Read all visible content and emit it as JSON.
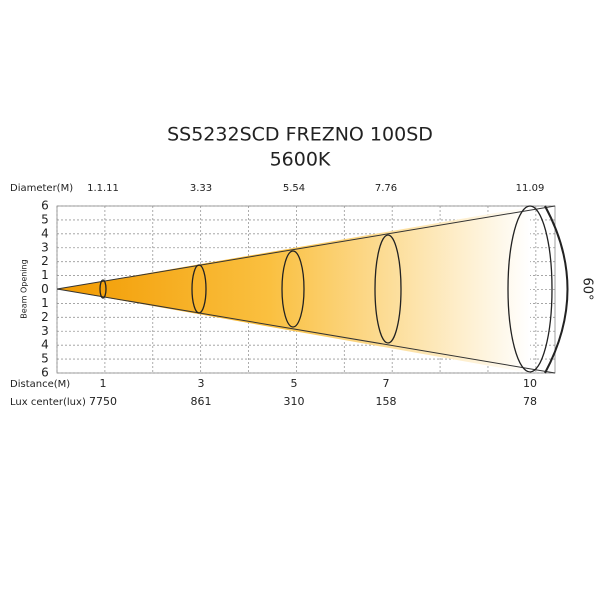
{
  "title": "SS5232SCD FREZNO 100SD",
  "subtitle": "5600K",
  "diameter": {
    "label": "Diameter(M)",
    "values": [
      "1.1.11",
      "3.33",
      "5.54",
      "7.76",
      "11.09"
    ]
  },
  "beam_opening": {
    "label": "Beam Opening",
    "scale": [
      "6",
      "5",
      "4",
      "3",
      "2",
      "1",
      "0",
      "1",
      "2",
      "3",
      "4",
      "5",
      "6"
    ]
  },
  "angle": "60°",
  "distance": {
    "label": "Distance(M)",
    "values": [
      "1",
      "3",
      "5",
      "7",
      "10"
    ]
  },
  "lux_center": {
    "label": "Lux center(lux)",
    "values": [
      "7750",
      "861",
      "310",
      "158",
      "78"
    ]
  }
}
